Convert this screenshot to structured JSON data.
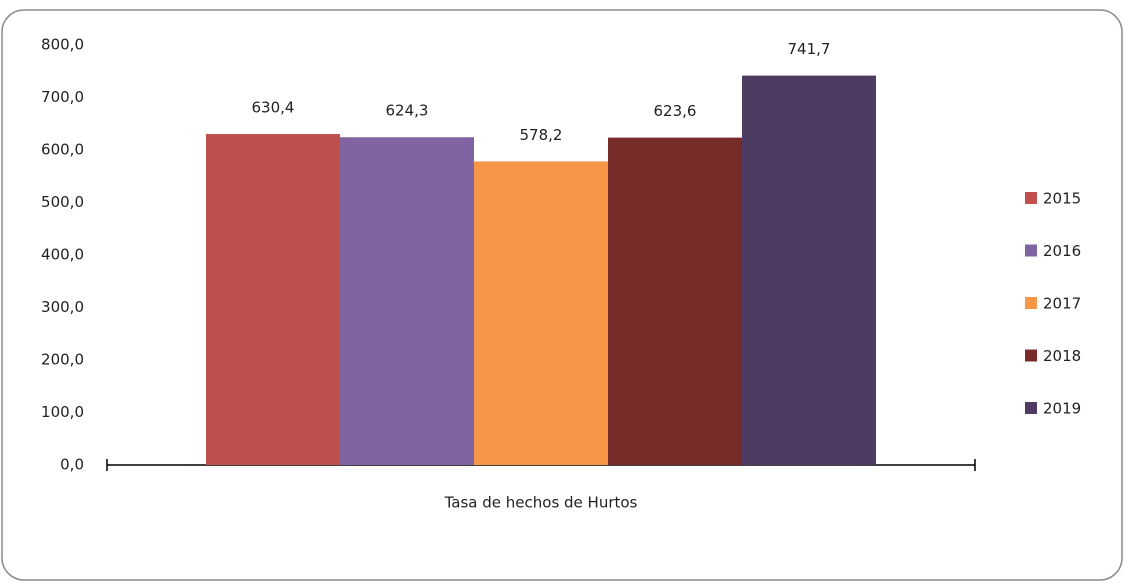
{
  "chart_data": {
    "type": "bar",
    "categories": [
      "Tasa de hechos de Hurtos"
    ],
    "series": [
      {
        "name": "2015",
        "color": "#c0504d",
        "values": [
          630.4
        ],
        "value_labels": [
          "630,4"
        ]
      },
      {
        "name": "2016",
        "color": "#8064a2",
        "values": [
          624.3
        ],
        "value_labels": [
          "624,3"
        ]
      },
      {
        "name": "2017",
        "color": "#f79646",
        "values": [
          578.2
        ],
        "value_labels": [
          "578,2"
        ]
      },
      {
        "name": "2018",
        "color": "#772c2a",
        "values": [
          623.6
        ],
        "value_labels": [
          "623,6"
        ]
      },
      {
        "name": "2019",
        "color": "#4d3b62",
        "values": [
          741.7
        ],
        "value_labels": [
          "741,7"
        ]
      }
    ],
    "ylim": [
      0,
      800
    ],
    "yticks": [
      {
        "value": 0,
        "label": "0,0"
      },
      {
        "value": 100,
        "label": "100,0"
      },
      {
        "value": 200,
        "label": "200,0"
      },
      {
        "value": 300,
        "label": "300,0"
      },
      {
        "value": 400,
        "label": "400,0"
      },
      {
        "value": 500,
        "label": "500,0"
      },
      {
        "value": 600,
        "label": "600,0"
      },
      {
        "value": 700,
        "label": "700,0"
      },
      {
        "value": 800,
        "label": "800,0"
      }
    ],
    "legend": "right",
    "grid": false
  }
}
